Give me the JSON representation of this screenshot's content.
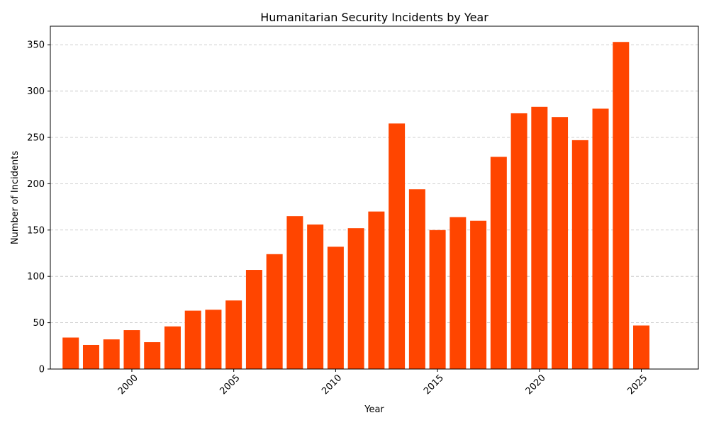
{
  "chart_data": {
    "type": "bar",
    "title": "Humanitarian Security Incidents by Year",
    "xlabel": "Year",
    "ylabel": "Number of Incidents",
    "x": [
      1997,
      1998,
      1999,
      2000,
      2001,
      2002,
      2003,
      2004,
      2005,
      2006,
      2007,
      2008,
      2009,
      2010,
      2011,
      2012,
      2013,
      2014,
      2015,
      2016,
      2017,
      2018,
      2019,
      2020,
      2021,
      2022,
      2023,
      2024,
      2025
    ],
    "values": [
      34,
      26,
      32,
      42,
      29,
      46,
      63,
      64,
      74,
      107,
      124,
      165,
      156,
      132,
      152,
      170,
      265,
      194,
      150,
      164,
      160,
      229,
      276,
      283,
      272,
      247,
      281,
      353,
      47
    ],
    "xlim": [
      1996,
      2027.8
    ],
    "ylim": [
      0,
      370
    ],
    "xticks": [
      2000,
      2005,
      2010,
      2015,
      2020,
      2025
    ],
    "yticks": [
      0,
      50,
      100,
      150,
      200,
      250,
      300,
      350
    ],
    "grid": "y-dashed",
    "bar_color": "#ff4500"
  }
}
